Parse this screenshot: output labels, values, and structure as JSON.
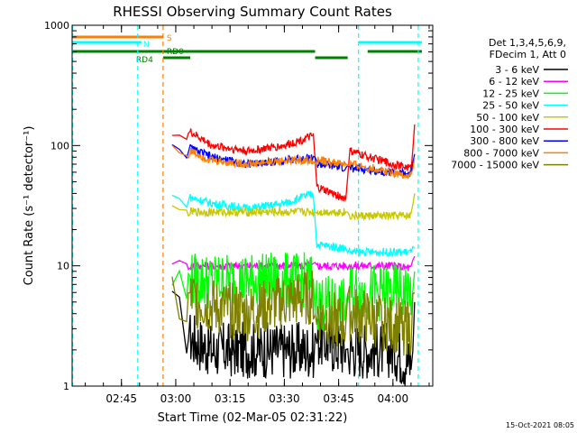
{
  "chart_data": {
    "type": "line",
    "title": "RHESSI Observing Summary Count Rates",
    "xlabel": "Start Time (02-Mar-05 02:31:22)",
    "ylabel": "Count Rate (s⁻¹ detector⁻¹)",
    "yscale": "log",
    "ylim": [
      1,
      1000
    ],
    "xlim": [
      "02:31:22",
      "04:11:00"
    ],
    "x_ticks": [
      "02:45",
      "03:00",
      "03:15",
      "03:30",
      "03:45",
      "04:00"
    ],
    "y_ticks": [
      "1",
      "10",
      "100",
      "1000"
    ],
    "legend_header": [
      "Det 1,3,4,5,6,9,",
      "FDecim 1, Att 0"
    ],
    "legend_position": "right",
    "footer": "15-Oct-2021 08:05",
    "flags": [
      {
        "label": "S",
        "color": "#ff7f00",
        "segments": [
          [
            "02:31:22",
            "02:56:30"
          ]
        ]
      },
      {
        "label": "N",
        "color": "#00ffff",
        "segments": [
          [
            "02:31:22",
            "02:50:30"
          ],
          [
            "03:50:30",
            "04:08:00"
          ]
        ]
      },
      {
        "label": "RD0",
        "color": "#008000",
        "segments": [
          [
            "02:31:22",
            "03:38:30"
          ],
          [
            "03:53:00",
            "04:08:00"
          ]
        ]
      },
      {
        "label": "RD4",
        "color": "#008000",
        "segments": [
          [
            "02:56:30",
            "03:04:00"
          ],
          [
            "03:38:30",
            "03:47:30"
          ]
        ]
      }
    ],
    "vlines": [
      {
        "time": "02:31:30",
        "color": "#00ffff"
      },
      {
        "time": "02:49:30",
        "color": "#00ffff"
      },
      {
        "time": "02:56:30",
        "color": "#ff7f00"
      },
      {
        "time": "03:50:30",
        "color": "#00ffff"
      },
      {
        "time": "04:07:00",
        "color": "#00ffff"
      }
    ],
    "x": [
      "02:59",
      "03:03",
      "03:04",
      "03:10",
      "03:20",
      "03:30",
      "03:38",
      "03:39",
      "03:47",
      "03:48",
      "04:00",
      "04:05",
      "04:06"
    ],
    "series": [
      {
        "name": "3 - 6 keV",
        "color": "#000000",
        "values": [
          4,
          3,
          2.5,
          2,
          2,
          2,
          2,
          2.5,
          2,
          2,
          2,
          1.5,
          5
        ]
      },
      {
        "name": "6 - 12 keV",
        "color": "#ff00ff",
        "values": [
          11,
          10,
          10,
          10,
          10,
          10,
          10,
          10,
          10,
          10,
          10,
          9.5,
          12
        ]
      },
      {
        "name": "12 - 25 keV",
        "color": "#00ff00",
        "values": [
          8,
          6,
          7.5,
          7.5,
          7.5,
          7.5,
          7.5,
          5,
          4.5,
          6,
          6,
          6,
          9
        ]
      },
      {
        "name": "25 - 50 keV",
        "color": "#00ffff",
        "values": [
          38,
          33,
          37,
          33,
          30,
          33,
          40,
          15,
          14,
          13,
          13,
          13,
          14
        ]
      },
      {
        "name": "50 - 100 keV",
        "color": "#c8c800",
        "values": [
          30,
          28,
          28,
          28,
          28,
          28,
          28,
          28,
          28,
          26,
          26,
          26,
          40
        ]
      },
      {
        "name": "100 - 300 keV",
        "color": "#ff0000",
        "values": [
          130,
          115,
          130,
          100,
          90,
          100,
          120,
          45,
          36,
          90,
          70,
          65,
          150
        ]
      },
      {
        "name": "300 - 800 keV",
        "color": "#0000ff",
        "values": [
          105,
          85,
          95,
          80,
          70,
          75,
          80,
          70,
          65,
          65,
          60,
          58,
          85
        ]
      },
      {
        "name": "800 - 7000 keV",
        "color": "#ff7f00",
        "values": [
          100,
          80,
          90,
          75,
          70,
          75,
          75,
          75,
          70,
          70,
          60,
          55,
          80
        ]
      },
      {
        "name": "7000 - 15000 keV",
        "color": "#808000",
        "values": [
          6,
          4,
          5.5,
          4.5,
          4,
          5,
          5.5,
          4,
          3.2,
          4,
          3.2,
          3,
          6
        ]
      }
    ]
  }
}
